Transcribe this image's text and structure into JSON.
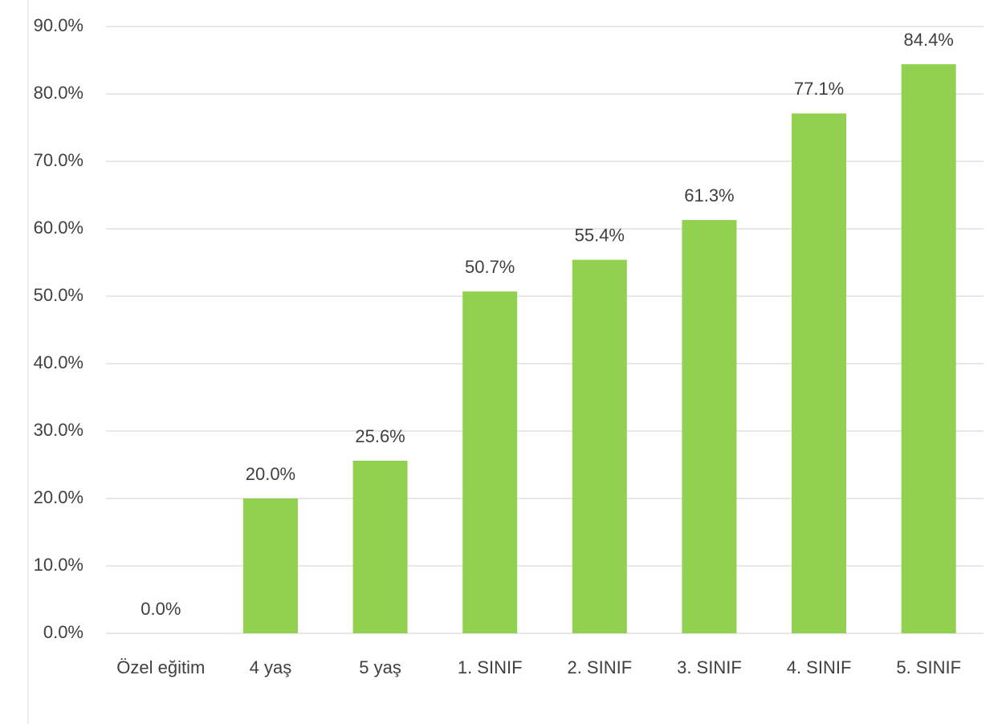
{
  "chart_data": {
    "type": "bar",
    "categories": [
      "Özel eğitim",
      "4 yaş",
      "5 yaş",
      "1. SINIF",
      "2. SINIF",
      "3. SINIF",
      "4. SINIF",
      "5. SINIF"
    ],
    "values": [
      0,
      20,
      25.6,
      50.7,
      55.4,
      61.3,
      77.1,
      84.4
    ],
    "value_labels": [
      "0.0%",
      "20.0%",
      "25.6%",
      "50.7%",
      "55.4%",
      "61.3%",
      "77.1%",
      "84.4%"
    ],
    "color": "#92d050",
    "ylim": [
      0,
      90
    ],
    "yticks": [
      {
        "value": 0,
        "label": "0.0%"
      },
      {
        "value": 10,
        "label": "10.0%"
      },
      {
        "value": 20,
        "label": "20.0%"
      },
      {
        "value": 30,
        "label": "30.0%"
      },
      {
        "value": 40,
        "label": "40.0%"
      },
      {
        "value": 50,
        "label": "50.0%"
      },
      {
        "value": 60,
        "label": "60.0%"
      },
      {
        "value": 70,
        "label": "70.0%"
      },
      {
        "value": 80,
        "label": "80.0%"
      },
      {
        "value": 90,
        "label": "90.0%"
      }
    ],
    "grid": true
  }
}
